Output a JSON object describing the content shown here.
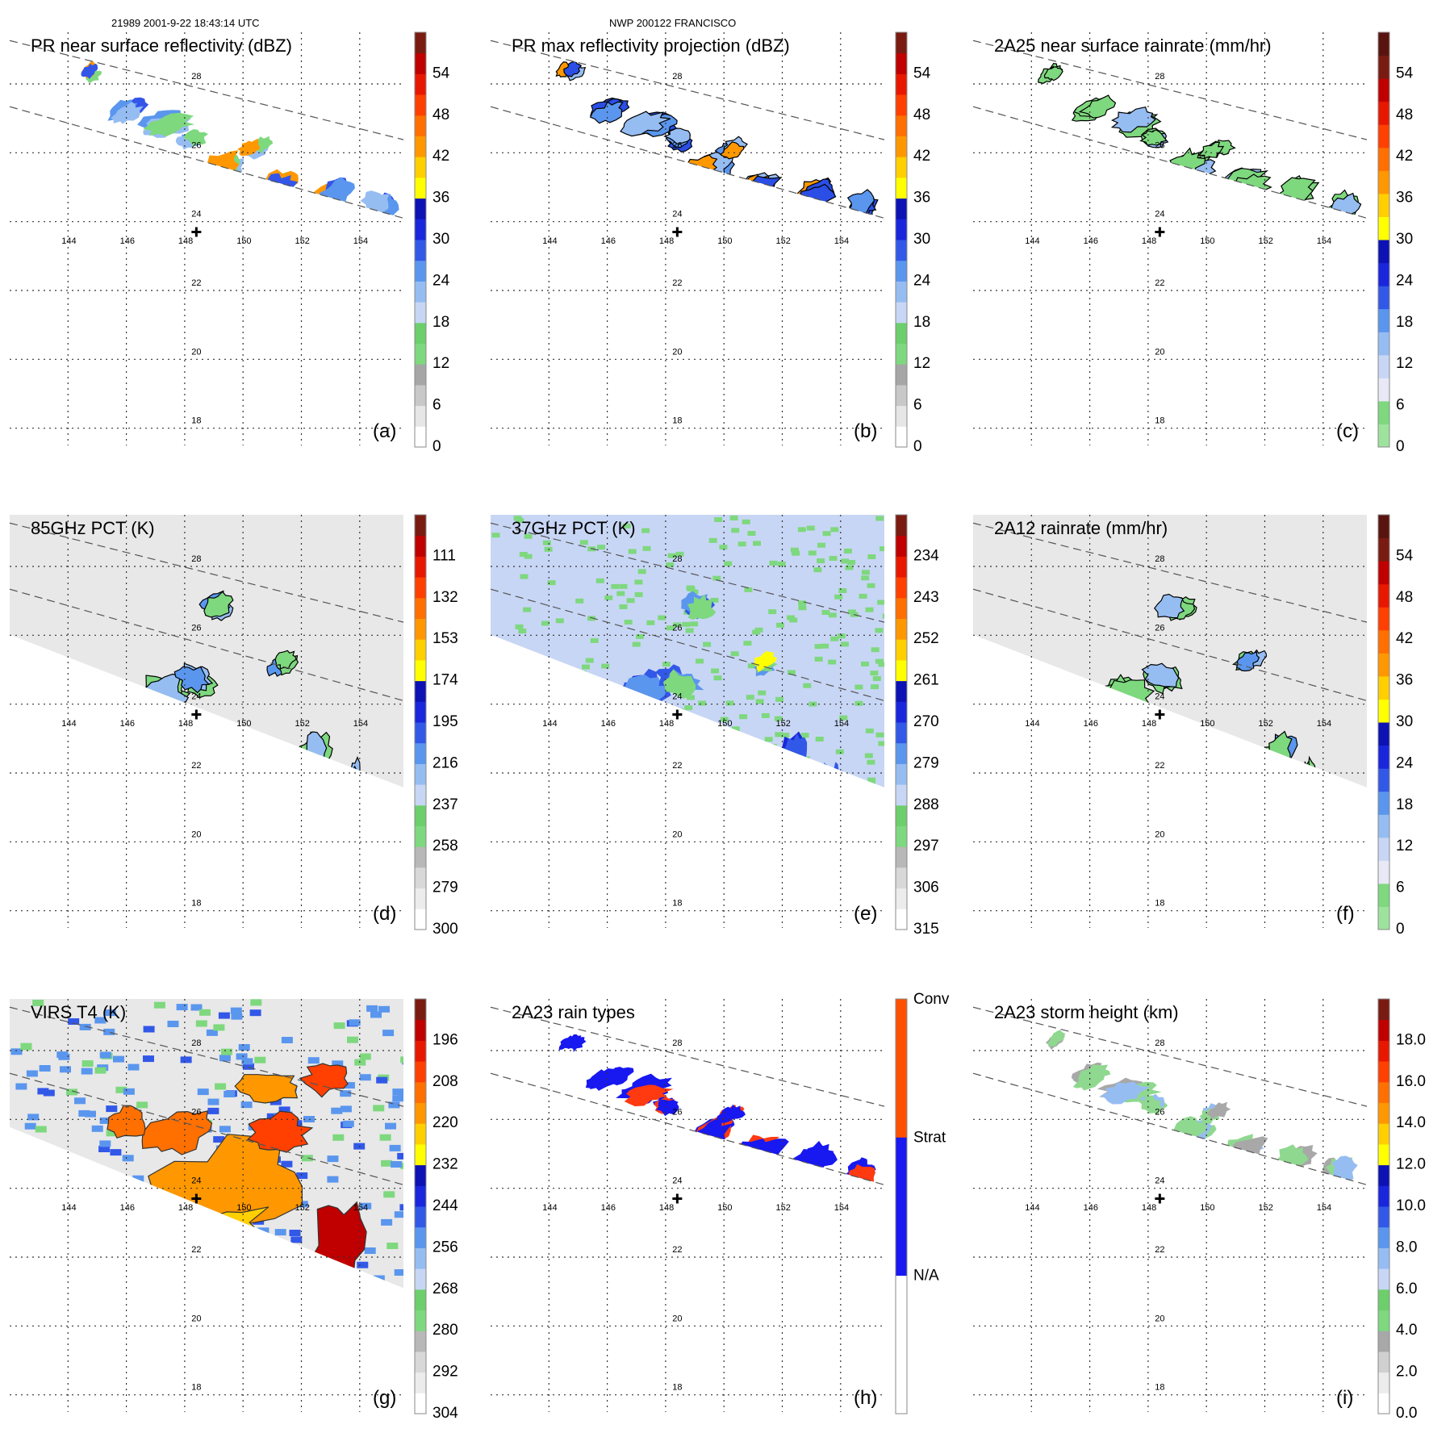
{
  "header": {
    "left": "21989 2001-9-22 18:43:14 UTC",
    "center": "NWP 200122 FRANCISCO"
  },
  "map": {
    "lon_ticks": [
      "144",
      "146",
      "148",
      "150",
      "152",
      "154"
    ],
    "lat_ticks": [
      "28",
      "26",
      "24",
      "22",
      "20",
      "18"
    ],
    "lon_range": [
      142,
      155.5
    ],
    "lat_range": [
      17.5,
      29.5
    ],
    "storm_center": {
      "lon": 148.4,
      "lat": 23.7
    }
  },
  "chart_data": [
    {
      "type": "heatmap",
      "panel": "(a)",
      "title": "PR near surface reflectivity (dBZ)",
      "swath": "PR",
      "lines": true,
      "colorbar": {
        "labels": [
          "0",
          "6",
          "12",
          "18",
          "24",
          "30",
          "36",
          "42",
          "48",
          "54"
        ],
        "colors": [
          "#ffffff",
          "#e6e6e6",
          "#c8c8c8",
          "#a6a6a6",
          "#7ed87e",
          "#6ccf6c",
          "#c8d6f5",
          "#96bdf2",
          "#5a96ee",
          "#3258e8",
          "#1a26dc",
          "#0d12b4",
          "#ffff00",
          "#ffcf00",
          "#ff9800",
          "#ff7000",
          "#ff4000",
          "#e81800",
          "#c00000",
          "#7a1b12"
        ]
      },
      "features": {
        "kind": "fill",
        "colors": [
          "#3356e8",
          "#5a96ee",
          "#96bdf2",
          "#7ed87e",
          "#ff9800"
        ]
      }
    },
    {
      "type": "heatmap",
      "panel": "(b)",
      "title": "PR max reflectivity projection (dBZ)",
      "swath": "PR",
      "lines": true,
      "colorbar": {
        "labels": [
          "0",
          "6",
          "12",
          "18",
          "24",
          "30",
          "36",
          "42",
          "48",
          "54"
        ],
        "colors": [
          "#ffffff",
          "#e6e6e6",
          "#c8c8c8",
          "#a6a6a6",
          "#7ed87e",
          "#6ccf6c",
          "#c8d6f5",
          "#96bdf2",
          "#5a96ee",
          "#3258e8",
          "#1a26dc",
          "#0d12b4",
          "#ffff00",
          "#ffcf00",
          "#ff9800",
          "#ff7000",
          "#ff4000",
          "#e81800",
          "#c00000",
          "#7a1b12"
        ]
      },
      "features": {
        "kind": "contoured",
        "colors": [
          "#2a4ee6",
          "#2a4ee6",
          "#5a96ee",
          "#96bdf2",
          "#ff9800"
        ]
      }
    },
    {
      "type": "heatmap",
      "panel": "(c)",
      "title": "2A25 near surface rainrate (mm/hr)",
      "swath": "PR",
      "lines": true,
      "colorbar": {
        "labels": [
          "0",
          "6",
          "12",
          "18",
          "24",
          "30",
          "36",
          "42",
          "48",
          "54"
        ],
        "colors": [
          "#9de39d",
          "#7ed87e",
          "#e8e8f6",
          "#c8d6f5",
          "#96bdf2",
          "#5a96ee",
          "#3258e8",
          "#1a26dc",
          "#0d12b4",
          "#ffff00",
          "#ffcf00",
          "#ff9800",
          "#ff7000",
          "#ff4000",
          "#e81800",
          "#c00000",
          "#7a1b12",
          "#5a1410"
        ]
      },
      "features": {
        "kind": "contoured",
        "colors": [
          "#7ed87e",
          "#7ed87e",
          "#7ed87e",
          "#96bdf2"
        ]
      }
    },
    {
      "type": "heatmap",
      "panel": "(d)",
      "title": "85GHz PCT (K)",
      "swath": "TMI",
      "lines": true,
      "colorbar": {
        "labels": [
          "300",
          "279",
          "258",
          "237",
          "216",
          "195",
          "174",
          "153",
          "132",
          "111"
        ],
        "colors": [
          "#ffffff",
          "#ececec",
          "#d8d8d8",
          "#b8b8b8",
          "#7ed87e",
          "#6ccf6c",
          "#c8d6f5",
          "#96bdf2",
          "#5a96ee",
          "#3258e8",
          "#1a26dc",
          "#0d12b4",
          "#ffff00",
          "#ffcf00",
          "#ff9800",
          "#ff7000",
          "#ff4000",
          "#e81800",
          "#c00000",
          "#7a1b12"
        ]
      },
      "features": {
        "kind": "contoured",
        "colors": [
          "#7ed87e",
          "#7ed87e",
          "#96bdf2",
          "#5a96ee"
        ]
      }
    },
    {
      "type": "heatmap",
      "panel": "(e)",
      "title": "37GHz PCT (K)",
      "swath": "TMI",
      "lines": true,
      "colorbar": {
        "labels": [
          "315",
          "306",
          "297",
          "288",
          "279",
          "270",
          "261",
          "252",
          "243",
          "234"
        ],
        "colors": [
          "#ffffff",
          "#ececec",
          "#d8d8d8",
          "#b8b8b8",
          "#7ed87e",
          "#6ccf6c",
          "#c8d6f5",
          "#96bdf2",
          "#5a96ee",
          "#3258e8",
          "#1a26dc",
          "#0d12b4",
          "#ffff00",
          "#ffcf00",
          "#ff9800",
          "#ff7000",
          "#ff4000",
          "#e81800",
          "#c00000",
          "#7a1b12"
        ]
      },
      "features": {
        "kind": "fill",
        "colors": [
          "#1a26dc",
          "#3258e8",
          "#5a96ee",
          "#7ed87e",
          "#ffff00"
        ]
      }
    },
    {
      "type": "heatmap",
      "panel": "(f)",
      "title": "2A12 rainrate (mm/hr)",
      "swath": "TMI",
      "lines": true,
      "colorbar": {
        "labels": [
          "0",
          "6",
          "12",
          "18",
          "24",
          "30",
          "36",
          "42",
          "48",
          "54"
        ],
        "colors": [
          "#9de39d",
          "#7ed87e",
          "#e8e8f6",
          "#c8d6f5",
          "#96bdf2",
          "#5a96ee",
          "#3258e8",
          "#1a26dc",
          "#0d12b4",
          "#ffff00",
          "#ffcf00",
          "#ff9800",
          "#ff7000",
          "#ff4000",
          "#e81800",
          "#c00000",
          "#7a1b12",
          "#5a1410"
        ]
      },
      "features": {
        "kind": "contoured",
        "colors": [
          "#7ed87e",
          "#7ed87e",
          "#7ed87e",
          "#96bdf2",
          "#5a96ee"
        ]
      }
    },
    {
      "type": "heatmap",
      "panel": "(g)",
      "title": "VIRS T4 (K)",
      "swath": "VIRS",
      "lines": true,
      "colorbar": {
        "labels": [
          "304",
          "292",
          "280",
          "268",
          "256",
          "244",
          "232",
          "220",
          "208",
          "196"
        ],
        "colors": [
          "#ffffff",
          "#ececec",
          "#d8d8d8",
          "#b8b8b8",
          "#7ed87e",
          "#6ccf6c",
          "#c8d6f5",
          "#96bdf2",
          "#5a96ee",
          "#3258e8",
          "#1a26dc",
          "#0d12b4",
          "#ffff00",
          "#ffcf00",
          "#ff9800",
          "#ff7000",
          "#ff4000",
          "#e81800",
          "#c00000",
          "#7a1b12"
        ]
      },
      "features": {
        "kind": "virs",
        "colors": [
          "#ff9800",
          "#ff7000",
          "#ff4000",
          "#c00000",
          "#ffd000"
        ]
      }
    },
    {
      "type": "heatmap",
      "panel": "(h)",
      "title": "2A23 rain types",
      "swath": "PR",
      "lines": true,
      "colorbar": {
        "labels": [
          "N/A",
          "Strat",
          "Conv"
        ],
        "categorical": true,
        "colors": [
          "#ffffff",
          "#1818f0",
          "#ff5000"
        ]
      },
      "features": {
        "kind": "fill",
        "colors": [
          "#1818f0",
          "#1818f0",
          "#1818f0",
          "#ff3a10"
        ]
      }
    },
    {
      "type": "heatmap",
      "panel": "(i)",
      "title": "2A23 storm height (km)",
      "swath": "PR",
      "lines": true,
      "colorbar": {
        "labels": [
          "0.0",
          "2.0",
          "4.0",
          "6.0",
          "8.0",
          "10.0",
          "12.0",
          "14.0",
          "16.0",
          "18.0"
        ],
        "colors": [
          "#ffffff",
          "#ececec",
          "#d0d0d0",
          "#a8a8a8",
          "#7ed87e",
          "#6ccf6c",
          "#c8d6f5",
          "#96bdf2",
          "#5a96ee",
          "#3258e8",
          "#1a26dc",
          "#0d12b4",
          "#ffff00",
          "#ffcf00",
          "#ff9800",
          "#ff7000",
          "#ff4000",
          "#e81800",
          "#c00000",
          "#7a1b12"
        ]
      },
      "features": {
        "kind": "fill",
        "colors": [
          "#8fd88f",
          "#a8a8a8",
          "#8fd88f",
          "#96bdf2"
        ]
      }
    }
  ]
}
